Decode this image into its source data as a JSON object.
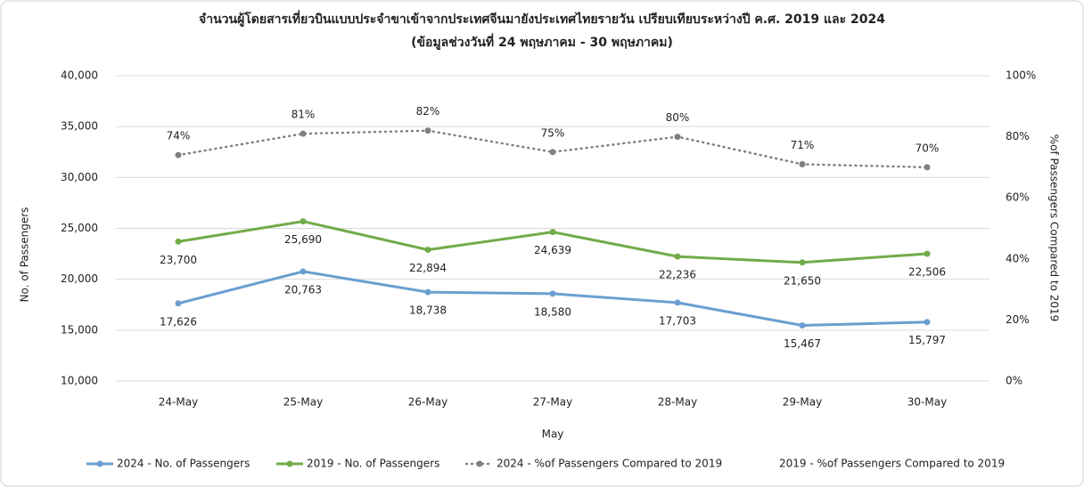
{
  "chart_data": {
    "type": "line",
    "title": "จำนวนผู้โดยสารเที่ยวบินแบบประจำขาเข้าจากประเทศจีนมายังประเทศไทยรายวัน เปรียบเทียบระหว่างปี ค.ศ. 2019 และ 2024",
    "subtitle": "(ข้อมูลช่วงวันที่ 24 พฤษภาคม - 30 พฤษภาคม)",
    "x_label": "May",
    "y_label": "No. of Passengers",
    "y2_label": "%of Passengers Compared to 2019",
    "categories": [
      "24-May",
      "25-May",
      "26-May",
      "27-May",
      "28-May",
      "29-May",
      "30-May"
    ],
    "series": [
      {
        "name": "2024 - No. of Passengers",
        "color": "#6a9fd0",
        "values": [
          17626,
          20763,
          18738,
          18580,
          17703,
          15467,
          15797
        ],
        "value_labels": [
          "17,626",
          "20,763",
          "18,738",
          "18,580",
          "17,703",
          "15,467",
          "15,797"
        ]
      },
      {
        "name": "2019 - No. of Passengers",
        "color": "#72ab4a",
        "values": [
          23700,
          25690,
          22894,
          24639,
          22236,
          21650,
          22506
        ],
        "value_labels": [
          "23,700",
          "25,690",
          "22,894",
          "24,639",
          "22,236",
          "21,650",
          "22,506"
        ]
      },
      {
        "name": "2024 - %of Passengers Compared to 2019",
        "color": "#808080",
        "axis": "y2",
        "dash": "dotted",
        "values": [
          74,
          81,
          82,
          75,
          80,
          71,
          70
        ],
        "value_labels": [
          "74%",
          "81%",
          "82%",
          "75%",
          "80%",
          "71%",
          "70%"
        ]
      },
      {
        "name": "2019 - %of Passengers Compared to 2019",
        "color": null,
        "axis": "y2",
        "values": [
          null,
          null,
          null,
          null,
          null,
          null,
          null
        ]
      }
    ],
    "ylim": [
      10000,
      40000
    ],
    "yticks": [
      {
        "value": 10000,
        "label": "10,000"
      },
      {
        "value": 15000,
        "label": "15,000"
      },
      {
        "value": 20000,
        "label": "20,000"
      },
      {
        "value": 25000,
        "label": "25,000"
      },
      {
        "value": 30000,
        "label": "30,000"
      },
      {
        "value": 35000,
        "label": "35,000"
      },
      {
        "value": 40000,
        "label": "40,000"
      }
    ],
    "y2lim": [
      0,
      100
    ],
    "y2ticks": [
      {
        "value": 0,
        "label": "0%"
      },
      {
        "value": 20,
        "label": "20%"
      },
      {
        "value": 40,
        "label": "40%"
      },
      {
        "value": 60,
        "label": "60%"
      },
      {
        "value": 80,
        "label": "80%"
      },
      {
        "value": 100,
        "label": "100%"
      }
    ],
    "grid": true,
    "legend": "bottom"
  }
}
